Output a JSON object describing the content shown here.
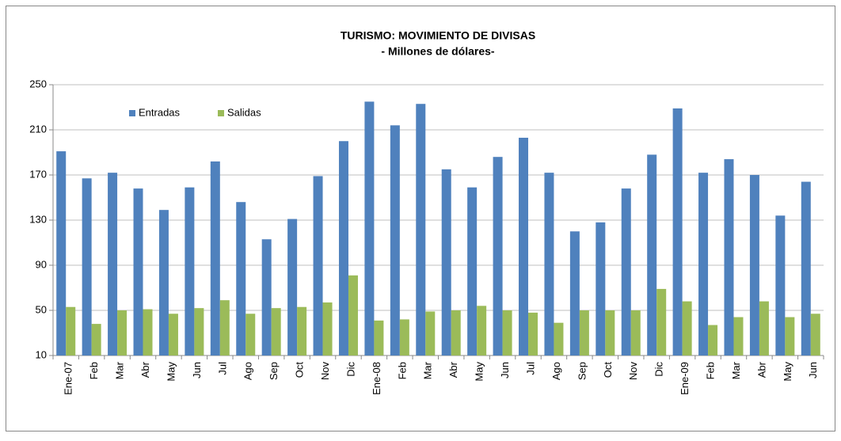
{
  "chart_data": {
    "type": "bar",
    "title": "TURISMO: MOVIMIENTO DE DIVISAS",
    "subtitle": "- Millones de dólares-",
    "categories": [
      "Ene-07",
      "Feb",
      "Mar",
      "Abr",
      "May",
      "Jun",
      "Jul",
      "Ago",
      "Sep",
      "Oct",
      "Nov",
      "Dic",
      "Ene-08",
      "Feb",
      "Mar",
      "Abr",
      "May",
      "Jun",
      "Jul",
      "Ago",
      "Sep",
      "Oct",
      "Nov",
      "Dic",
      "Ene-09",
      "Feb",
      "Mar",
      "Abr",
      "May",
      "Jun"
    ],
    "series": [
      {
        "name": "Entradas",
        "color": "#4f81bd",
        "values": [
          191,
          167,
          172,
          158,
          139,
          159,
          182,
          146,
          113,
          131,
          169,
          200,
          235,
          214,
          233,
          175,
          159,
          186,
          203,
          172,
          120,
          128,
          158,
          188,
          229,
          172,
          184,
          170,
          134,
          164
        ]
      },
      {
        "name": "Salidas",
        "color": "#9bbb59",
        "values": [
          53,
          38,
          50,
          51,
          47,
          52,
          59,
          47,
          52,
          53,
          57,
          81,
          41,
          42,
          49,
          50,
          54,
          50,
          48,
          39,
          50,
          50,
          50,
          69,
          58,
          37,
          44,
          58,
          44,
          47
        ]
      }
    ],
    "ylim": [
      10,
      250
    ],
    "yticks": [
      10,
      50,
      90,
      130,
      170,
      210,
      250
    ],
    "grid": true,
    "legend": "top-left"
  }
}
